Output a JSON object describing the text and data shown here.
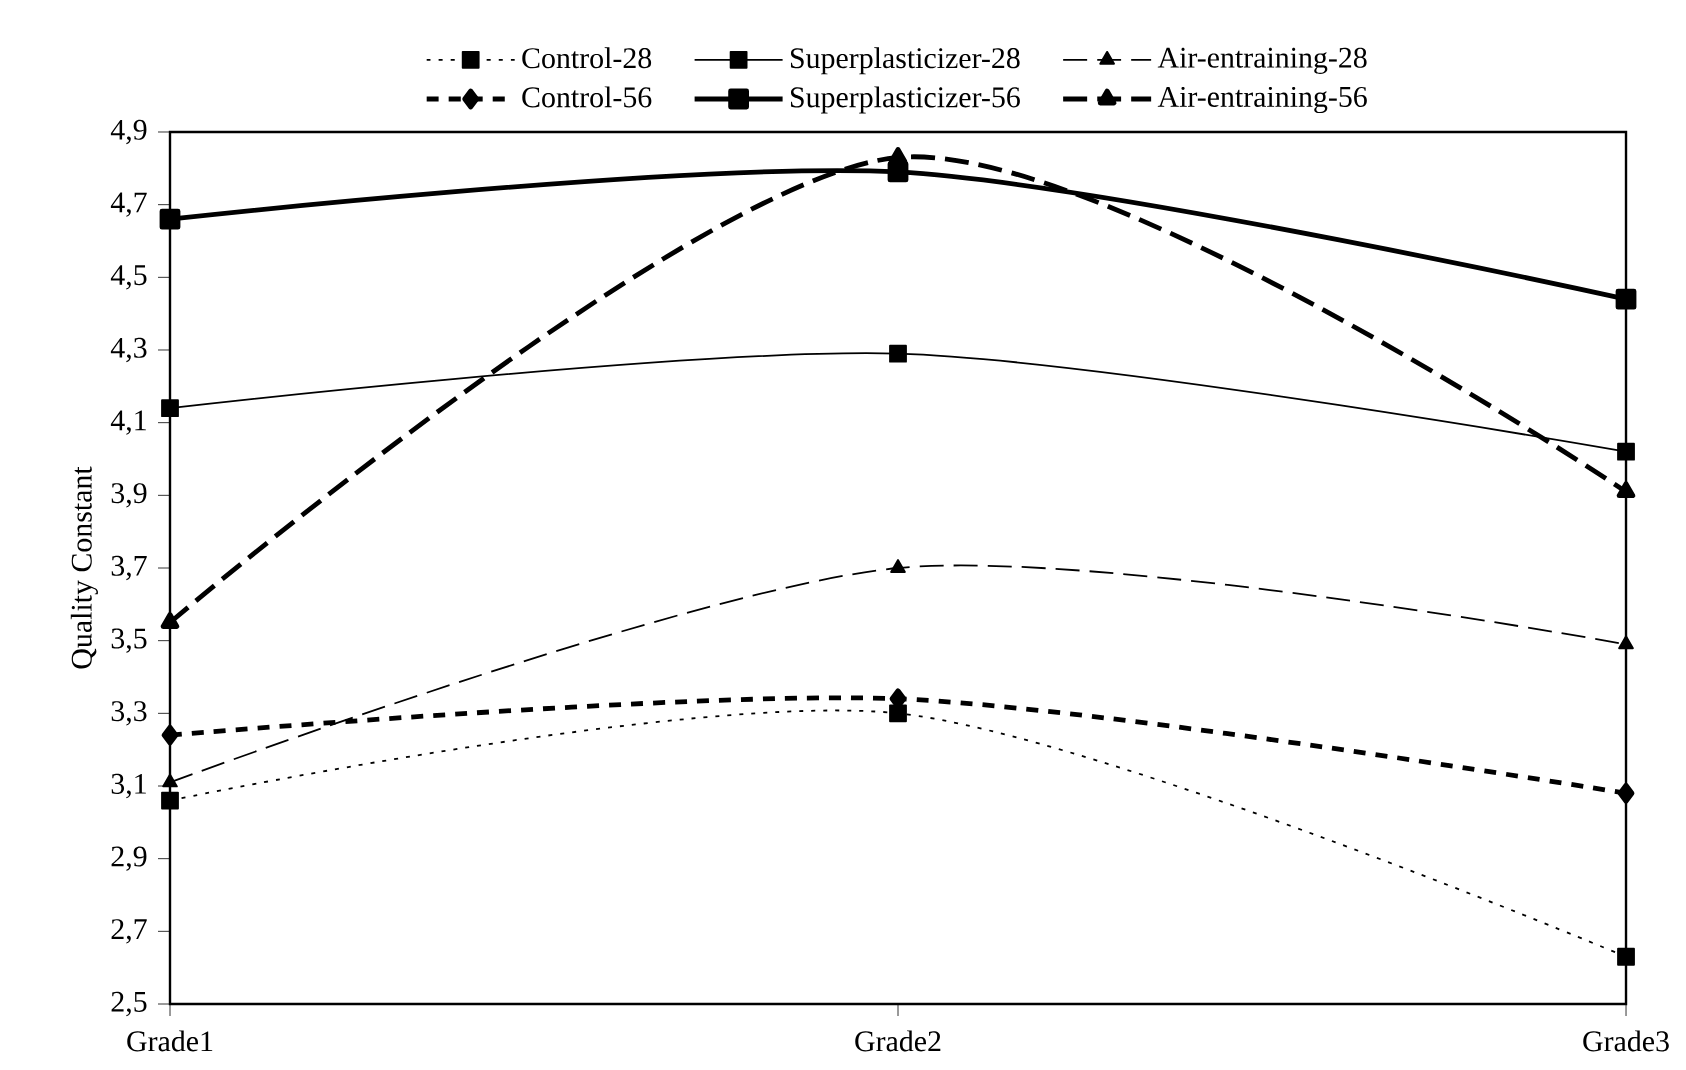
{
  "chart_data": {
    "type": "line",
    "ylabel": "Quality Constant",
    "categories": [
      "Grade1",
      "Grade2",
      "Grade3"
    ],
    "ylim": [
      2.5,
      4.9
    ],
    "yticks": [
      {
        "value": 2.5,
        "label": "2,5"
      },
      {
        "value": 2.7,
        "label": "2,7"
      },
      {
        "value": 2.9,
        "label": "2,9"
      },
      {
        "value": 3.1,
        "label": "3,1"
      },
      {
        "value": 3.3,
        "label": "3,3"
      },
      {
        "value": 3.5,
        "label": "3,5"
      },
      {
        "value": 3.7,
        "label": "3,7"
      },
      {
        "value": 3.9,
        "label": "3,9"
      },
      {
        "value": 4.1,
        "label": "4,1"
      },
      {
        "value": 4.3,
        "label": "4,3"
      },
      {
        "value": 4.5,
        "label": "4,5"
      },
      {
        "value": 4.7,
        "label": "4,7"
      },
      {
        "value": 4.9,
        "label": "4,9"
      }
    ],
    "grid": false,
    "legend": "top",
    "series": [
      {
        "name": "Control-28",
        "color": "#000000",
        "marker": "square",
        "line_style": "dotted",
        "values": [
          3.06,
          3.3,
          2.63
        ]
      },
      {
        "name": "Superplasticizer-28",
        "color": "#000000",
        "marker": "square",
        "line_style": "solid",
        "values": [
          4.14,
          4.29,
          4.02
        ]
      },
      {
        "name": "Air-entraining-28",
        "color": "#000000",
        "marker": "triangle",
        "line_style": "dashed",
        "values": [
          3.11,
          3.7,
          3.49
        ]
      },
      {
        "name": "Control-56",
        "color": "#000000",
        "marker": "diamond",
        "line_style": "dashed",
        "values": [
          3.24,
          3.34,
          3.08
        ]
      },
      {
        "name": "Superplasticizer-56",
        "color": "#000000",
        "marker": "square",
        "line_style": "solid",
        "values": [
          4.66,
          4.79,
          4.44
        ]
      },
      {
        "name": "Air-entraining-56",
        "color": "#000000",
        "marker": "triangle",
        "line_style": "dashed",
        "values": [
          3.55,
          4.83,
          3.91
        ]
      }
    ]
  }
}
